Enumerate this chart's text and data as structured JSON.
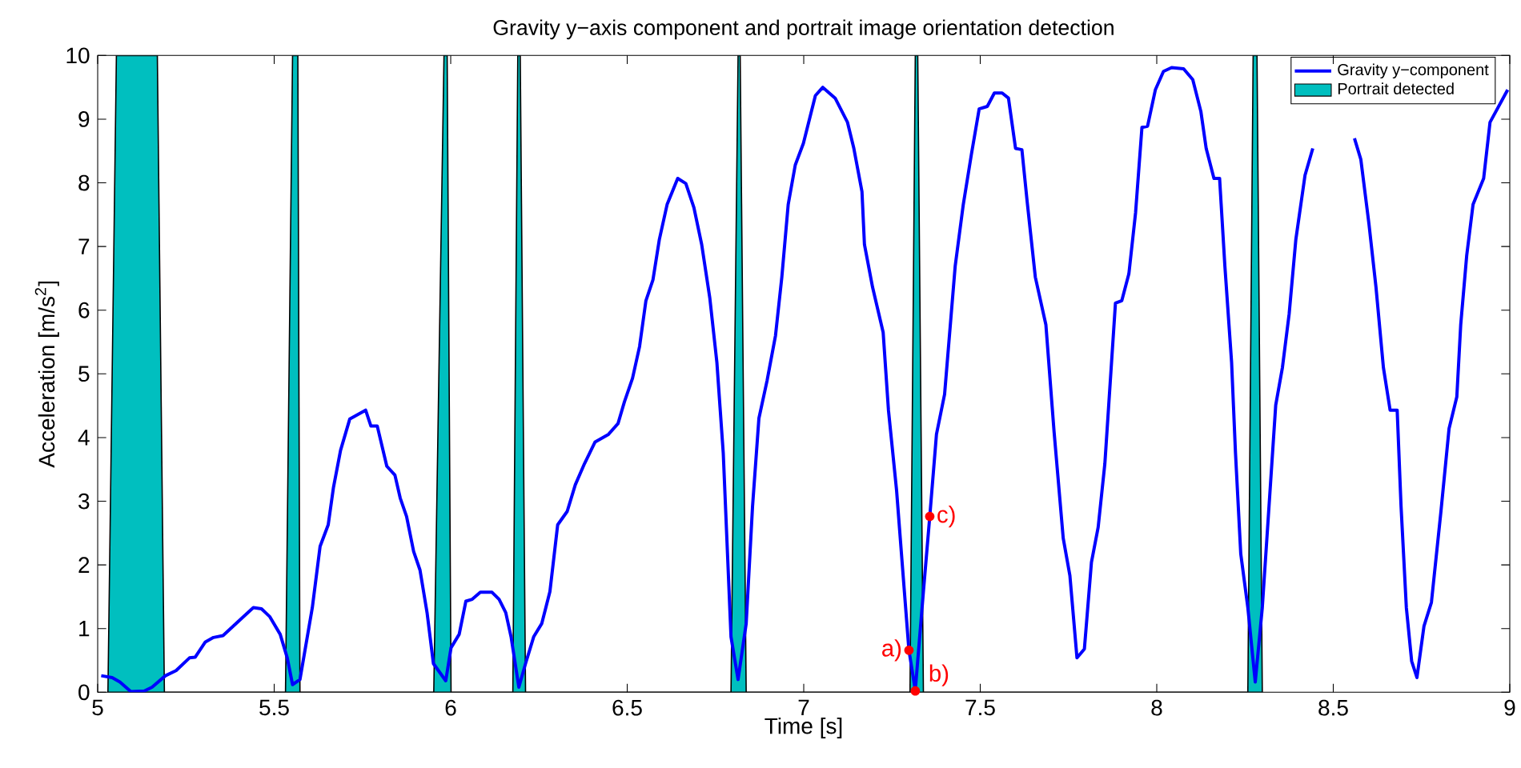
{
  "chart_data": {
    "type": "line",
    "title": "Gravity y−axis component and portrait image orientation detection",
    "xlabel": "Time [s]",
    "ylabel": "Acceleration [m/s$^{2}$]",
    "xlim": [
      5,
      9
    ],
    "ylim": [
      0,
      10
    ],
    "xticks": [
      5,
      5.5,
      6,
      6.5,
      7,
      7.5,
      8,
      8.5,
      9
    ],
    "yticks": [
      0,
      1,
      2,
      3,
      4,
      5,
      6,
      7,
      8,
      9,
      10
    ],
    "legend": "top right",
    "grid": false,
    "series": [
      {
        "name": "Gravity y−component",
        "color": "#0000ff",
        "x": [
          5.01,
          5.041,
          5.063,
          5.094,
          5.132,
          5.154,
          5.192,
          5.222,
          5.26,
          5.276,
          5.305,
          5.328,
          5.355,
          5.396,
          5.441,
          5.464,
          5.487,
          5.517,
          5.537,
          5.552,
          5.573,
          5.608,
          5.63,
          5.653,
          5.668,
          5.688,
          5.714,
          5.759,
          5.774,
          5.792,
          5.819,
          5.842,
          5.857,
          5.875,
          5.895,
          5.913,
          5.933,
          5.951,
          5.986,
          6.001,
          6.024,
          6.043,
          6.061,
          6.084,
          6.117,
          6.137,
          6.156,
          6.171,
          6.193,
          6.212,
          6.235,
          6.258,
          6.281,
          6.303,
          6.33,
          6.353,
          6.379,
          6.409,
          6.447,
          6.474,
          6.492,
          6.515,
          6.535,
          6.553,
          6.573,
          6.591,
          6.613,
          6.643,
          6.666,
          6.689,
          6.711,
          6.734,
          6.754,
          6.772,
          6.794,
          6.814,
          6.837,
          6.855,
          6.873,
          6.896,
          6.92,
          6.938,
          6.956,
          6.976,
          6.999,
          7.033,
          7.054,
          7.089,
          7.124,
          7.142,
          7.165,
          7.172,
          7.195,
          7.225,
          7.24,
          7.263,
          7.278,
          7.298,
          7.316,
          7.339,
          7.357,
          7.376,
          7.399,
          7.429,
          7.452,
          7.475,
          7.497,
          7.52,
          7.54,
          7.562,
          7.58,
          7.6,
          7.618,
          7.633,
          7.656,
          7.686,
          7.709,
          7.735,
          7.754,
          7.774,
          7.795,
          7.815,
          7.834,
          7.853,
          7.883,
          7.901,
          7.921,
          7.94,
          7.958,
          7.974,
          7.996,
          8.019,
          8.042,
          8.076,
          8.102,
          8.125,
          8.14,
          8.162,
          8.178,
          8.193,
          8.212,
          8.223,
          8.238,
          8.258,
          8.279,
          8.299,
          8.337,
          8.356,
          8.375,
          8.394,
          8.42,
          8.442,
          8.5,
          8.56,
          8.578,
          8.601,
          8.621,
          8.642,
          8.661,
          8.681,
          8.692,
          8.707,
          8.722,
          8.737,
          8.757,
          8.778,
          8.805,
          8.828,
          8.85,
          8.861,
          8.878,
          8.896,
          8.926,
          8.944,
          8.994
        ],
        "values": [
          0.26,
          0.23,
          0.16,
          0.01,
          0.02,
          0.08,
          0.26,
          0.34,
          0.54,
          0.55,
          0.79,
          0.86,
          0.89,
          1.1,
          1.33,
          1.31,
          1.19,
          0.91,
          0.54,
          0.12,
          0.2,
          1.33,
          2.29,
          2.63,
          3.22,
          3.8,
          4.29,
          4.43,
          4.18,
          4.18,
          3.55,
          3.41,
          3.05,
          2.76,
          2.21,
          1.92,
          1.25,
          0.45,
          0.18,
          0.7,
          0.91,
          1.43,
          1.46,
          1.57,
          1.57,
          1.46,
          1.25,
          0.87,
          0.08,
          0.45,
          0.87,
          1.08,
          1.58,
          2.63,
          2.84,
          3.26,
          3.59,
          3.93,
          4.05,
          4.22,
          4.56,
          4.93,
          5.43,
          6.15,
          6.48,
          7.11,
          7.66,
          8.07,
          7.99,
          7.61,
          7.03,
          6.19,
          5.18,
          3.76,
          0.87,
          0.2,
          1.08,
          2.92,
          4.3,
          4.89,
          5.6,
          6.52,
          7.66,
          8.28,
          8.62,
          9.37,
          9.5,
          9.33,
          8.95,
          8.54,
          7.86,
          7.03,
          6.36,
          5.65,
          4.43,
          3.17,
          2.09,
          0.66,
          0.03,
          1.58,
          2.76,
          4.05,
          4.68,
          6.69,
          7.66,
          8.45,
          9.16,
          9.2,
          9.41,
          9.41,
          9.33,
          8.54,
          8.52,
          7.7,
          6.52,
          5.77,
          4.1,
          2.42,
          1.83,
          0.54,
          0.68,
          2.04,
          2.59,
          3.59,
          6.11,
          6.15,
          6.57,
          7.53,
          8.87,
          8.89,
          9.46,
          9.75,
          9.81,
          9.79,
          9.62,
          9.12,
          8.54,
          8.07,
          8.07,
          6.69,
          5.18,
          3.76,
          2.17,
          1.33,
          0.16,
          1.33,
          4.51,
          5.1,
          5.94,
          7.11,
          8.12,
          8.54,
          null,
          8.7,
          8.37,
          7.36,
          6.36,
          5.1,
          4.43,
          4.43,
          2.92,
          1.33,
          0.49,
          0.23,
          1.04,
          1.41,
          2.84,
          4.14,
          4.64,
          5.77,
          6.86,
          7.66,
          8.07,
          8.95,
          9.46
        ]
      },
      {
        "name": "Portrait detected",
        "type": "area",
        "color": "#00bfbf",
        "x": [
          5.029,
          5.053,
          5.169,
          5.189,
          5.532,
          5.552,
          5.567,
          5.573,
          5.952,
          5.981,
          5.99,
          6.001,
          6.176,
          6.19,
          6.197,
          6.212,
          6.794,
          6.814,
          6.82,
          6.837,
          7.301,
          7.316,
          7.323,
          7.339,
          8.258,
          8.273,
          8.284,
          8.299
        ],
        "values": [
          0,
          10,
          10,
          0,
          0,
          10,
          10,
          0,
          0,
          10,
          10,
          0,
          0,
          10,
          10,
          0,
          0,
          10,
          10,
          0,
          0,
          10,
          10,
          0,
          0,
          10,
          10,
          0
        ]
      }
    ],
    "annotations": [
      {
        "text": "a)",
        "x": 7.298,
        "y": 0.66
      },
      {
        "text": "b)",
        "x": 7.316,
        "y": 0.02
      },
      {
        "text": "c)",
        "x": 7.357,
        "y": 2.76
      }
    ]
  }
}
